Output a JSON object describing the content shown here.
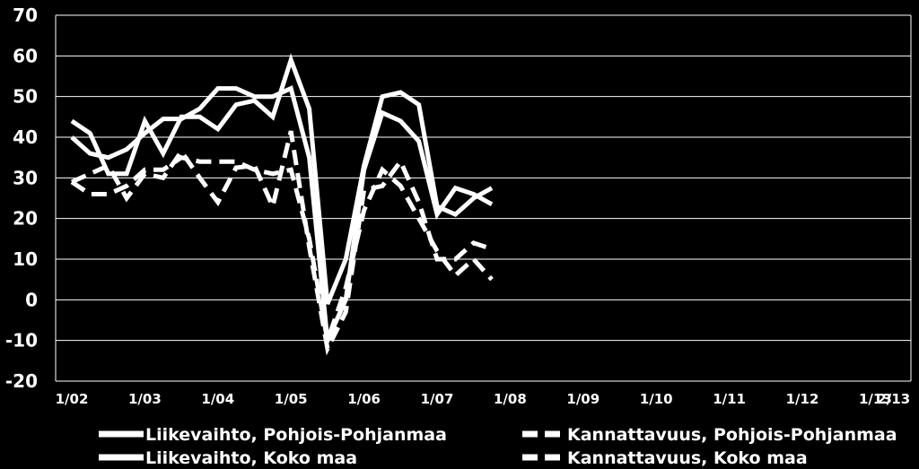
{
  "chart_data": {
    "type": "line",
    "ylim": [
      -20,
      70
    ],
    "y_ticks": [
      "70",
      "60",
      "50",
      "40",
      "30",
      "20",
      "10",
      "0",
      "-10",
      "-20"
    ],
    "y_tick_values": [
      70,
      60,
      50,
      40,
      30,
      20,
      10,
      0,
      -10,
      -20
    ],
    "x_labels": [
      "1/02",
      "1/03",
      "1/04",
      "1/05",
      "1/06",
      "1/07",
      "1/08",
      "1/09",
      "1/10",
      "1/11",
      "1/12",
      "1/13",
      "2/13"
    ],
    "x_label_index": [
      0,
      4,
      8,
      12,
      16,
      20,
      24,
      28,
      32,
      36,
      40,
      44,
      45
    ],
    "grid": true,
    "legend_position": "bottom",
    "colors": {
      "background": "#000000",
      "lines": "#ffffff",
      "grid": "#ffffff"
    },
    "series": [
      {
        "name": "Liikevaihto, Pohjois-Pohjanmaa",
        "style": "solid",
        "values": [
          44,
          41,
          31,
          31,
          44,
          36,
          45,
          45,
          42,
          48,
          49,
          45,
          59,
          47,
          -1,
          10,
          33,
          50,
          51,
          48,
          23,
          21,
          25,
          27.5
        ]
      },
      {
        "name": "Liikevaihto, Koko maa",
        "style": "solid",
        "values": [
          40,
          36,
          35,
          37,
          41,
          44.5,
          44.5,
          47,
          52,
          52,
          50,
          50,
          52,
          35,
          -10,
          0,
          32,
          46,
          44,
          39,
          21,
          27.5,
          26,
          23.5
        ]
      },
      {
        "name": "Kannattavuus, Pohjois-Pohjanmaa",
        "style": "dashed",
        "values": [
          29,
          31,
          33,
          25,
          31,
          30,
          36.5,
          30,
          24,
          32.5,
          33,
          23,
          41.5,
          13,
          -12,
          -3,
          27,
          28,
          34,
          24,
          10,
          10,
          14,
          12.5
        ]
      },
      {
        "name": "Kannattavuus, Koko maa",
        "style": "dashed",
        "values": [
          29,
          26,
          26,
          28,
          32,
          32,
          35,
          34,
          34,
          34,
          32,
          31,
          32,
          15,
          -10,
          3,
          22,
          32,
          28,
          20,
          12,
          6,
          10,
          5
        ]
      }
    ]
  },
  "legend": [
    {
      "label": "Liikevaihto, Pohjois-Pohjanmaa",
      "style": "solid"
    },
    {
      "label": "Kannattavuus, Pohjois-Pohjanmaa",
      "style": "dashed"
    },
    {
      "label": "Liikevaihto, Koko maa",
      "style": "solid"
    },
    {
      "label": "Kannattavuus, Koko maa",
      "style": "dashed"
    }
  ]
}
